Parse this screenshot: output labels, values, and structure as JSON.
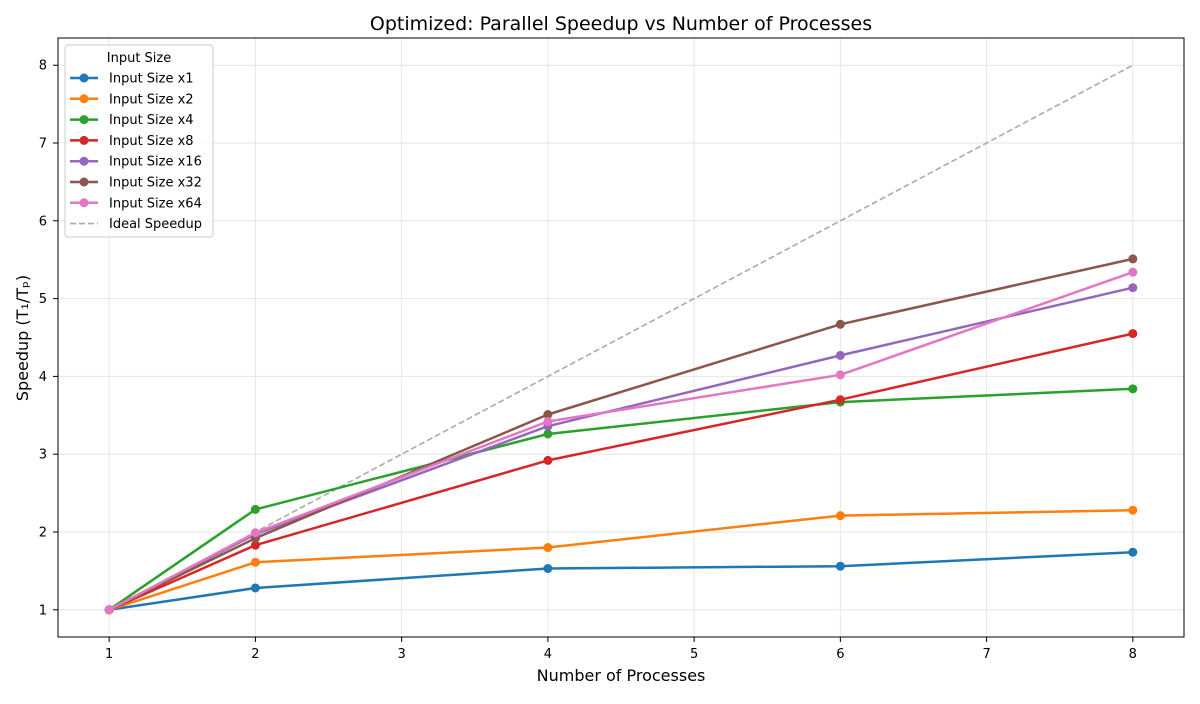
{
  "chart_data": {
    "type": "line",
    "title": "Optimized: Parallel Speedup vs Number of Processes",
    "xlabel": "Number of Processes",
    "ylabel": "Speedup (T₁/Tₚ)",
    "x": [
      1,
      2,
      4,
      6,
      8
    ],
    "xlim": [
      0.65,
      8.35
    ],
    "ylim": [
      0.65,
      8.35
    ],
    "xticks": [
      1,
      2,
      3,
      4,
      5,
      6,
      7,
      8
    ],
    "yticks": [
      1,
      2,
      3,
      4,
      5,
      6,
      7,
      8
    ],
    "grid": true,
    "legend": {
      "title": "Input Size",
      "placement": "top-left"
    },
    "series": [
      {
        "name": "Input Size x1",
        "color": "#1f77b4",
        "style": "solid-marker",
        "values": [
          1.0,
          1.28,
          1.53,
          1.56,
          1.74
        ]
      },
      {
        "name": "Input Size x2",
        "color": "#ff7f0e",
        "style": "solid-marker",
        "values": [
          1.0,
          1.61,
          1.8,
          2.21,
          2.28
        ]
      },
      {
        "name": "Input Size x4",
        "color": "#2ca02c",
        "style": "solid-marker",
        "values": [
          1.0,
          2.29,
          3.26,
          3.67,
          3.84
        ]
      },
      {
        "name": "Input Size x8",
        "color": "#d62728",
        "style": "solid-marker",
        "values": [
          1.0,
          1.83,
          2.92,
          3.7,
          4.55
        ]
      },
      {
        "name": "Input Size x16",
        "color": "#9467bd",
        "style": "solid-marker",
        "values": [
          1.0,
          1.97,
          3.36,
          4.27,
          5.14
        ]
      },
      {
        "name": "Input Size x32",
        "color": "#8c564b",
        "style": "solid-marker",
        "values": [
          1.0,
          1.92,
          3.51,
          4.67,
          5.51
        ]
      },
      {
        "name": "Input Size x64",
        "color": "#e377c2",
        "style": "solid-marker",
        "values": [
          1.0,
          1.99,
          3.42,
          4.02,
          5.34
        ]
      },
      {
        "name": "Ideal Speedup",
        "color": "#aaaaaa",
        "style": "dashed",
        "values": [
          1,
          2,
          4,
          6,
          8
        ]
      }
    ]
  }
}
